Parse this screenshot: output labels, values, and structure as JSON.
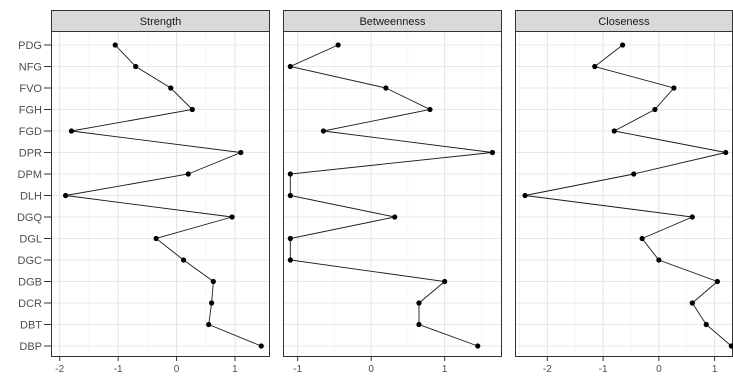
{
  "chart_data": [
    {
      "type": "line",
      "title": "Strength",
      "categories": [
        "PDG",
        "NFG",
        "FVO",
        "FGH",
        "FGD",
        "DPR",
        "DPM",
        "DLH",
        "DGQ",
        "DGL",
        "DGC",
        "DGB",
        "DCR",
        "DBT",
        "DBP"
      ],
      "values": [
        -1.05,
        -0.7,
        -0.1,
        0.27,
        -1.8,
        1.1,
        0.2,
        -1.9,
        0.95,
        -0.35,
        0.12,
        0.63,
        0.6,
        0.55,
        1.45
      ],
      "xlim": [
        -2.15,
        1.6
      ],
      "xticks": [
        -2,
        -1,
        0,
        1
      ],
      "grid": true
    },
    {
      "type": "line",
      "title": "Betweenness",
      "categories": [
        "PDG",
        "NFG",
        "FVO",
        "FGH",
        "FGD",
        "DPR",
        "DPM",
        "DLH",
        "DGQ",
        "DGL",
        "DGC",
        "DGB",
        "DCR",
        "DBT",
        "DBP"
      ],
      "values": [
        -0.45,
        -1.1,
        0.2,
        0.8,
        -0.65,
        1.65,
        -1.1,
        -1.1,
        0.32,
        -1.1,
        -1.1,
        1.0,
        0.65,
        0.65,
        1.45
      ],
      "xlim": [
        -1.2,
        1.78
      ],
      "xticks": [
        -1,
        0,
        1
      ],
      "grid": true
    },
    {
      "type": "line",
      "title": "Closeness",
      "categories": [
        "PDG",
        "NFG",
        "FVO",
        "FGH",
        "FGD",
        "DPR",
        "DPM",
        "DLH",
        "DGQ",
        "DGL",
        "DGC",
        "DGB",
        "DCR",
        "DBT",
        "DBP"
      ],
      "values": [
        -0.65,
        -1.15,
        0.27,
        -0.07,
        -0.8,
        1.2,
        -0.45,
        -2.4,
        0.6,
        -0.3,
        0.0,
        1.05,
        0.6,
        0.85,
        1.3
      ],
      "xlim": [
        -2.58,
        1.33
      ],
      "xticks": [
        -2,
        -1,
        0,
        1
      ],
      "grid": true
    }
  ]
}
